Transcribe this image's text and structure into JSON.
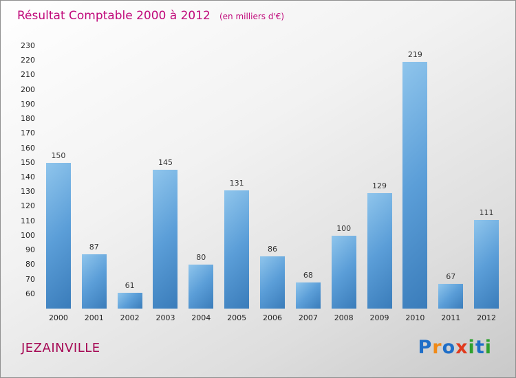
{
  "chart_data": {
    "type": "bar",
    "title": "Résultat Comptable 2000 à 2012",
    "subtitle": "(en milliers d'€)",
    "categories": [
      "2000",
      "2001",
      "2002",
      "2003",
      "2004",
      "2005",
      "2006",
      "2007",
      "2008",
      "2009",
      "2010",
      "2011",
      "2012"
    ],
    "values": [
      150,
      87,
      61,
      145,
      80,
      131,
      86,
      68,
      100,
      129,
      219,
      67,
      111
    ],
    "xlabel": "",
    "ylabel": "",
    "ylim": [
      50,
      230
    ],
    "ytick_min": 60,
    "ytick_step": 10,
    "grid": false,
    "legend_position": "none",
    "value_labels_shown": true
  },
  "footer": {
    "commune": "JEZAINVILLE"
  },
  "logo": {
    "word": "Proxiti",
    "letters": [
      {
        "ch": "P",
        "color": "#1e6ec8"
      },
      {
        "ch": "r",
        "color": "#f08a18"
      },
      {
        "ch": "o",
        "color": "#1e6ec8"
      },
      {
        "ch": "x",
        "color": "#e03a1e"
      },
      {
        "ch": "i",
        "color": "#2fa12f"
      },
      {
        "ch": "t",
        "color": "#1e6ec8"
      },
      {
        "ch": "i",
        "color": "#2fa12f"
      }
    ]
  },
  "colors": {
    "title_color": "#c0087a",
    "commune_color": "#a60a55",
    "bar_light": "#8fc5ec",
    "bar_mid": "#5b9ed8",
    "bar_dark": "#3a7cba"
  }
}
